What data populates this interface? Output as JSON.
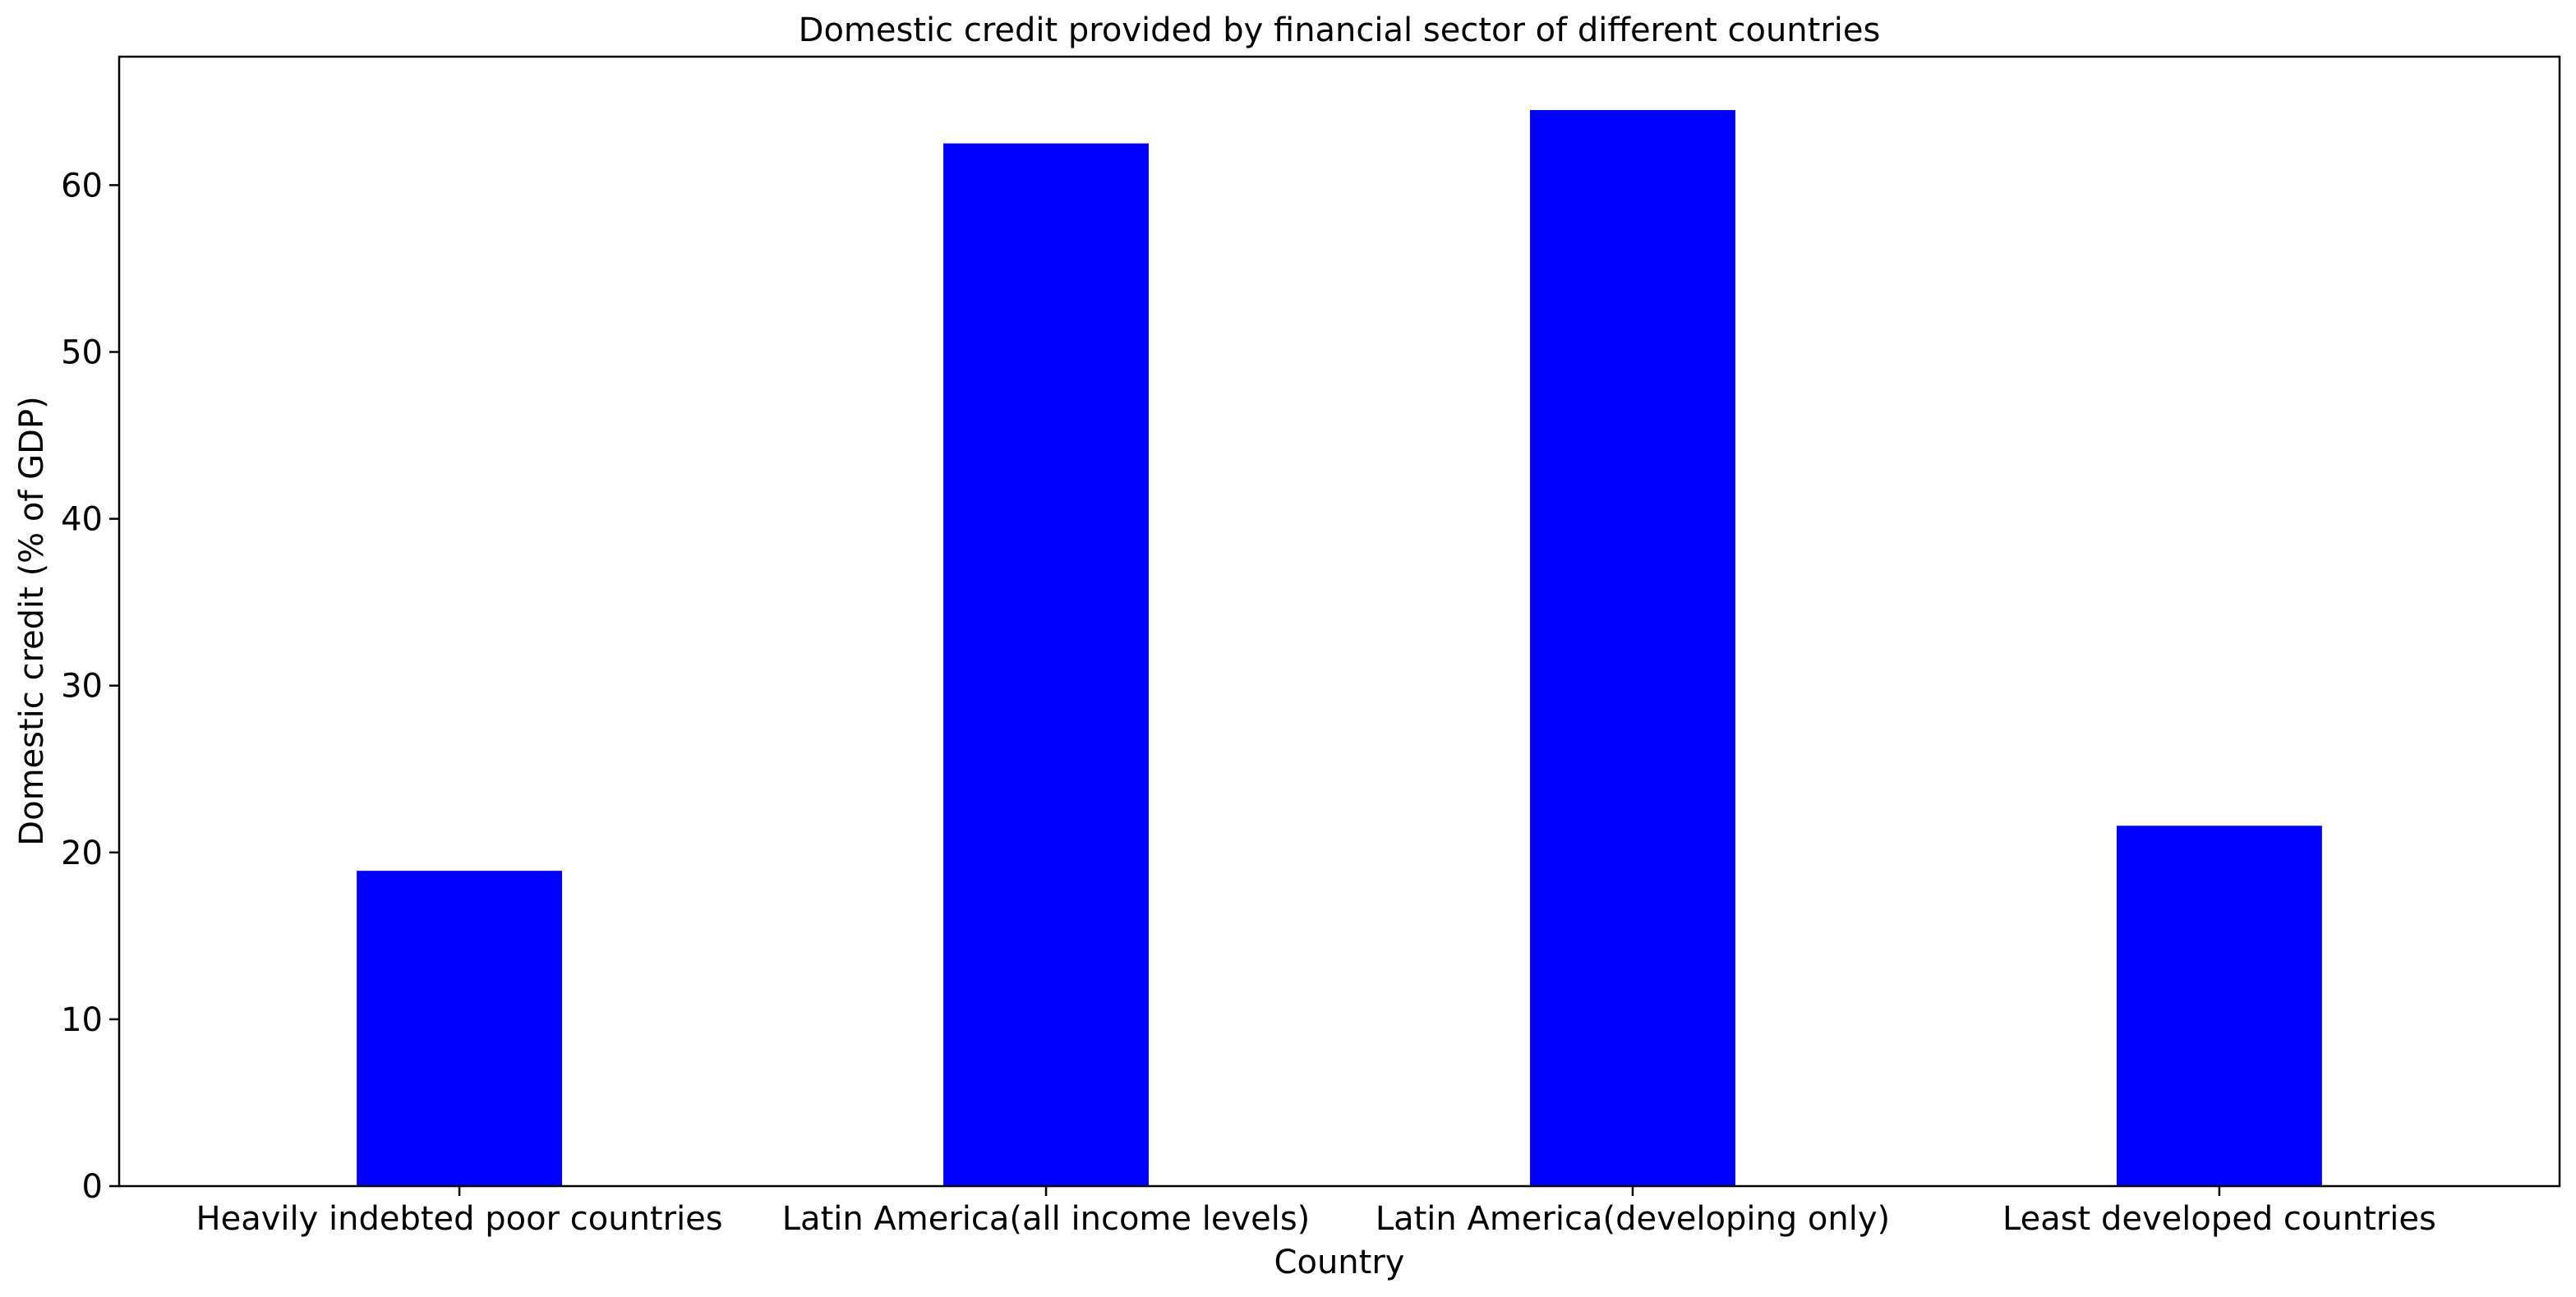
{
  "chart_data": {
    "type": "bar",
    "title": "Domestic credit provided by financial sector of different countries",
    "xlabel": "Country",
    "ylabel": "Domestic credit (% of GDP)",
    "categories": [
      "Heavily indebted poor countries",
      "Latin America(all income levels)",
      "Latin America(developing only)",
      "Least developed countries"
    ],
    "values": [
      18.9,
      62.5,
      64.5,
      21.6
    ],
    "ylim": [
      0,
      67.7
    ],
    "yticks": [
      0,
      10,
      20,
      30,
      40,
      50,
      60
    ],
    "bar_color": "#0000ff",
    "grid": false,
    "legend": "none"
  }
}
